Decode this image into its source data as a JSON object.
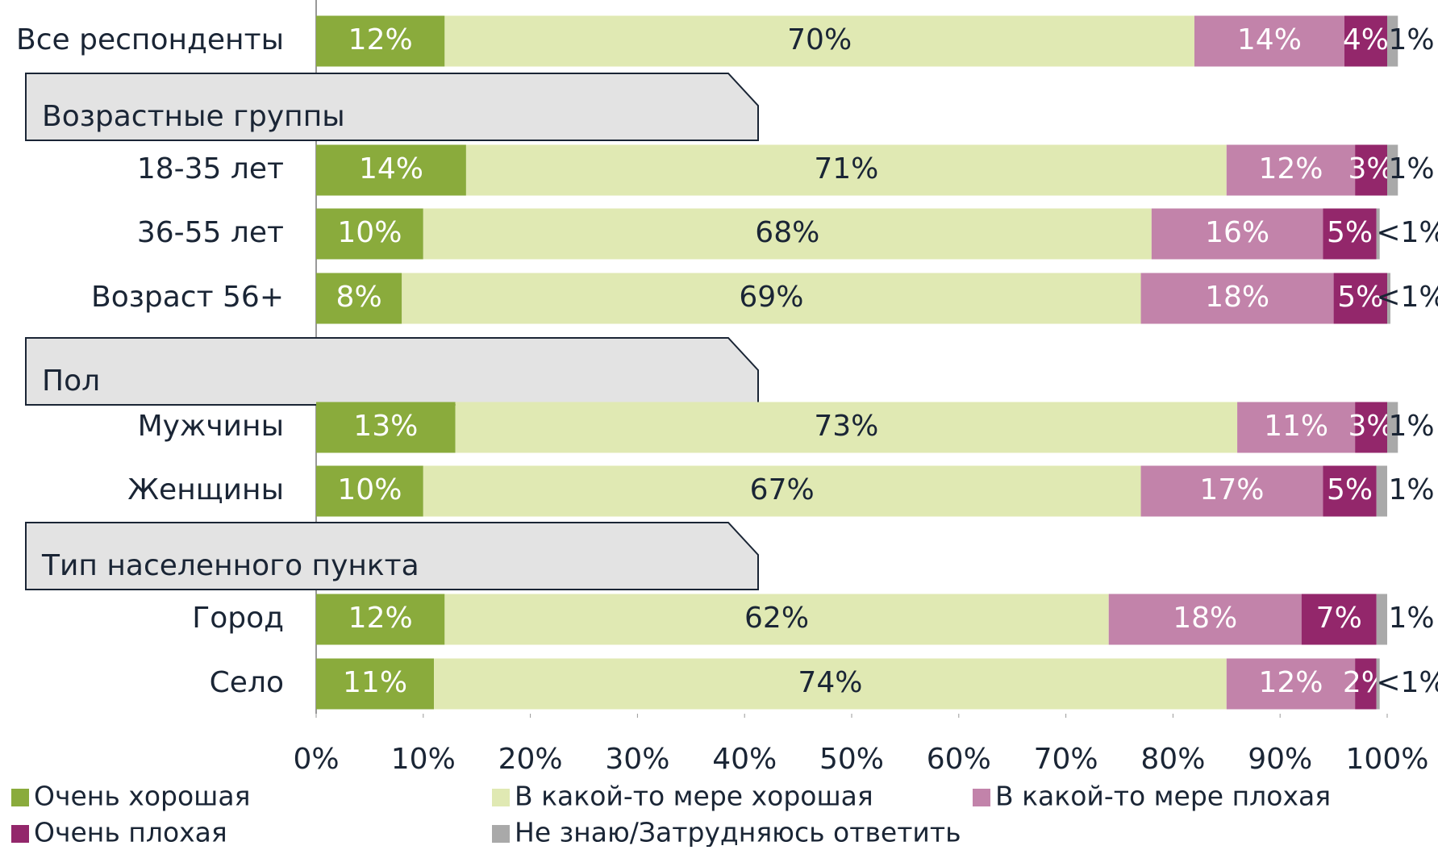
{
  "chart_data": {
    "type": "stacked-bar-horizontal",
    "categories": [
      "Все респонденты",
      "18-35 лет",
      "36-55 лет",
      "Возраст 56+",
      "Мужчины",
      "Женщины",
      "Город",
      "Село"
    ],
    "group_headers": [
      {
        "label": "Возрастные группы",
        "members": [
          "18-35 лет",
          "36-55 лет",
          "Возраст 56+"
        ]
      },
      {
        "label": "Пол",
        "members": [
          "Мужчины",
          "Женщины"
        ]
      },
      {
        "label": "Тип населенного пункта",
        "members": [
          "Город",
          "Село"
        ]
      }
    ],
    "series": [
      {
        "name": "Очень хорошая",
        "color": "#8aab3c",
        "label_color": "#ffffff",
        "values": [
          12,
          14,
          10,
          8,
          13,
          10,
          12,
          11
        ],
        "value_labels": [
          "12%",
          "14%",
          "10%",
          "8%",
          "13%",
          "10%",
          "12%",
          "11%"
        ]
      },
      {
        "name": "В какой-то мере хорошая",
        "color": "#e0e9b3",
        "label_color": "#1a2535",
        "values": [
          70,
          71,
          68,
          69,
          73,
          67,
          62,
          74
        ],
        "value_labels": [
          "70%",
          "71%",
          "68%",
          "69%",
          "73%",
          "67%",
          "62%",
          "74%"
        ]
      },
      {
        "name": "В какой-то мере плохая",
        "color": "#c283aa",
        "label_color": "#ffffff",
        "values": [
          14,
          12,
          16,
          18,
          11,
          17,
          18,
          12
        ],
        "value_labels": [
          "14%",
          "12%",
          "16%",
          "18%",
          "11%",
          "17%",
          "18%",
          "12%"
        ]
      },
      {
        "name": "Очень плохая",
        "color": "#93276b",
        "label_color": "#ffffff",
        "values": [
          4,
          3,
          5,
          5,
          3,
          5,
          7,
          2
        ],
        "value_labels": [
          "4%",
          "3%",
          "5%",
          "5%",
          "3%",
          "5%",
          "7%",
          "2%"
        ]
      },
      {
        "name": "Не знаю/Затрудняюсь ответить",
        "color": "#a9a9a9",
        "label_color": "#1a2535",
        "label_outside": true,
        "values": [
          1,
          1,
          0.3,
          0.3,
          1,
          1,
          1,
          0.3
        ],
        "value_labels": [
          "1%",
          "1%",
          "<1%",
          "<1%",
          "1%",
          "1%",
          "1%",
          "<1%"
        ]
      }
    ],
    "xlim": [
      0,
      100
    ],
    "xticks": [
      {
        "value": 0,
        "label": "0%"
      },
      {
        "value": 10,
        "label": "10%"
      },
      {
        "value": 20,
        "label": "20%"
      },
      {
        "value": 30,
        "label": "30%"
      },
      {
        "value": 40,
        "label": "40%"
      },
      {
        "value": 50,
        "label": "50%"
      },
      {
        "value": 60,
        "label": "60%"
      },
      {
        "value": 70,
        "label": "70%"
      },
      {
        "value": 80,
        "label": "80%"
      },
      {
        "value": 90,
        "label": "90%"
      },
      {
        "value": 100,
        "label": "100%"
      }
    ],
    "grid": false,
    "legend": "bottom"
  }
}
